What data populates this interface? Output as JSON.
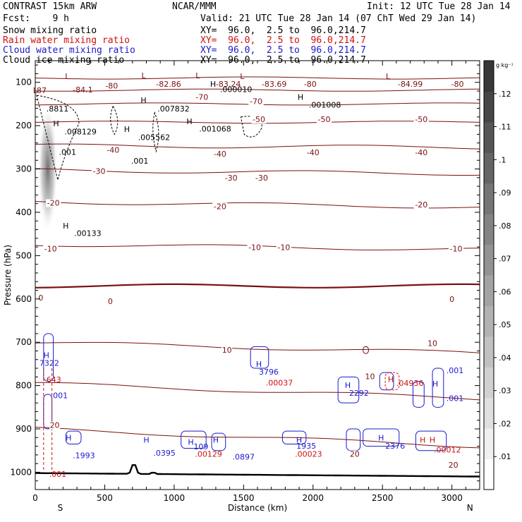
{
  "header": {
    "model": "CONTRAST 15km ARW",
    "org": "NCAR/MMM",
    "init": "Init: 12 UTC Tue 28 Jan 14",
    "fcst": "Fcst:    9 h",
    "valid": "Valid: 21 UTC Tue 28 Jan 14 (07 ChT Wed 29 Jan 14)",
    "fields": [
      {
        "label": "Snow mixing ratio",
        "xy": "XY=  96.0,  2.5 to  96.0,214.7",
        "color": "#000000"
      },
      {
        "label": "Rain water mixing ratio",
        "xy": "XY=  96.0,  2.5 to  96.0,214.7",
        "color": "#d01010"
      },
      {
        "label": "Cloud water mixing ratio",
        "xy": "XY=  96.0,  2.5 to  96.0,214.7",
        "color": "#1a1acc"
      },
      {
        "label": "Cloud ice mixing ratio",
        "xy": "XY=  96.0,  2.5 to  96.0,214.7",
        "color": "#000000"
      }
    ]
  },
  "colors": {
    "temperature": "#7a1010",
    "freezing_line": "#7a1010",
    "rain": "#d01010",
    "cloud_water": "#1a1acc",
    "snow": "#000000",
    "terrain": "#000000"
  },
  "chart_data": {
    "type": "contour-cross-section",
    "ylabel": "Pressure (hPa)",
    "xlabel": "Distance (km)",
    "x_ticks": [
      "0",
      "500",
      "1000",
      "1500",
      "2000",
      "2500",
      "3000"
    ],
    "x_tick_values": [
      0,
      500,
      1000,
      1500,
      2000,
      2500,
      3000
    ],
    "x_ends": {
      "left": "S",
      "right": "N"
    },
    "xlim": [
      0,
      3200
    ],
    "y_ticks": [
      "100",
      "200",
      "300",
      "400",
      "500",
      "600",
      "700",
      "800",
      "900",
      "1000"
    ],
    "y_tick_values": [
      100,
      200,
      300,
      400,
      500,
      600,
      700,
      800,
      900,
      1000
    ],
    "ylim": [
      1040,
      50
    ],
    "colorbar": {
      "unit": "g kg⁻¹",
      "ticks": [
        ".01",
        ".02",
        ".03",
        ".04",
        ".05",
        ".06",
        ".07",
        ".08",
        ".09",
        ".1",
        ".11",
        ".12"
      ],
      "tick_values": [
        0.01,
        0.02,
        0.03,
        0.04,
        0.05,
        0.06,
        0.07,
        0.08,
        0.09,
        0.1,
        0.11,
        0.12
      ]
    },
    "temperature_labels": [
      {
        "x": 550,
        "p": 108,
        "text": "-80"
      },
      {
        "x": 1980,
        "p": 104,
        "text": "-80"
      },
      {
        "x": 3040,
        "p": 104,
        "text": "-80"
      },
      {
        "x": 1200,
        "p": 134,
        "text": "-70"
      },
      {
        "x": 1590,
        "p": 144,
        "text": "-70"
      },
      {
        "x": 1610,
        "p": 185,
        "text": "-50"
      },
      {
        "x": 2080,
        "p": 185,
        "text": "-50"
      },
      {
        "x": 2780,
        "p": 185,
        "text": "-50"
      },
      {
        "x": 560,
        "p": 256,
        "text": "-40"
      },
      {
        "x": 1330,
        "p": 265,
        "text": "-40"
      },
      {
        "x": 2000,
        "p": 262,
        "text": "-40"
      },
      {
        "x": 2780,
        "p": 262,
        "text": "-40"
      },
      {
        "x": 460,
        "p": 305,
        "text": "-30"
      },
      {
        "x": 1410,
        "p": 320,
        "text": "-30"
      },
      {
        "x": 1630,
        "p": 320,
        "text": "-30"
      },
      {
        "x": 130,
        "p": 378,
        "text": "-20"
      },
      {
        "x": 1330,
        "p": 386,
        "text": "-20"
      },
      {
        "x": 2780,
        "p": 382,
        "text": "-20"
      },
      {
        "x": 110,
        "p": 484,
        "text": "-10"
      },
      {
        "x": 1580,
        "p": 481,
        "text": "-10"
      },
      {
        "x": 1790,
        "p": 481,
        "text": "-10"
      },
      {
        "x": 3030,
        "p": 484,
        "text": "-10"
      },
      {
        "x": 40,
        "p": 597,
        "text": "0"
      },
      {
        "x": 540,
        "p": 605,
        "text": "0"
      },
      {
        "x": 3000,
        "p": 600,
        "text": "0"
      },
      {
        "x": 2860,
        "p": 702,
        "text": "10"
      },
      {
        "x": 1380,
        "p": 718,
        "text": "10"
      },
      {
        "x": 2410,
        "p": 779,
        "text": "10"
      },
      {
        "x": 140,
        "p": 891,
        "text": "20"
      },
      {
        "x": 2300,
        "p": 958,
        "text": "20"
      },
      {
        "x": 3010,
        "p": 983,
        "text": "20"
      }
    ],
    "lows": [
      {
        "x": 230,
        "p": 86
      },
      {
        "x": 780,
        "p": 84
      },
      {
        "x": 1170,
        "p": 84
      },
      {
        "x": 1490,
        "p": 86
      },
      {
        "x": 2540,
        "p": 86
      },
      {
        "x": 0,
        "p": 118
      }
    ],
    "low_values": [
      {
        "x": 10,
        "p": 118,
        "text": "87"
      },
      {
        "x": 270,
        "p": 117,
        "text": "-84.1"
      },
      {
        "x": 870,
        "p": 104,
        "text": "-82.86"
      },
      {
        "x": 1300,
        "p": 104,
        "text": "-83.24"
      },
      {
        "x": 1630,
        "p": 104,
        "text": "-83.69"
      },
      {
        "x": 2610,
        "p": 104,
        "text": "-84.99"
      }
    ],
    "highs": [
      {
        "x": 1280,
        "p": 104,
        "text": "H"
      },
      {
        "x": 1910,
        "p": 134,
        "text": "H"
      },
      {
        "x": 780,
        "p": 141,
        "text": "H"
      },
      {
        "x": 1110,
        "p": 190,
        "text": "H"
      },
      {
        "x": 660,
        "p": 208,
        "text": "H"
      },
      {
        "x": 150,
        "p": 195,
        "text": "H"
      },
      {
        "x": 220,
        "p": 431,
        "text": "H"
      }
    ],
    "cloud_ice_values": [
      {
        "x": 1330,
        "p": 116,
        "text": ".000010"
      },
      {
        "x": 1970,
        "p": 152,
        "text": ".001008"
      },
      {
        "x": 880,
        "p": 161,
        "text": ".007832"
      },
      {
        "x": 80,
        "p": 161,
        "text": ".8811"
      },
      {
        "x": 210,
        "p": 214,
        "text": ".008129"
      },
      {
        "x": 1180,
        "p": 207,
        "text": ".001068"
      },
      {
        "x": 740,
        "p": 227,
        "text": ".005562"
      },
      {
        "x": 170,
        "p": 261,
        "text": ".001"
      },
      {
        "x": 690,
        "p": 281,
        "text": ".001"
      },
      {
        "x": 280,
        "p": 448,
        "text": ".00133"
      }
    ],
    "cloud_water_values": [
      {
        "x": 30,
        "p": 748,
        "text": "7322"
      },
      {
        "x": 1610,
        "p": 768,
        "text": "3796"
      },
      {
        "x": 2960,
        "p": 765,
        "text": ".001"
      },
      {
        "x": 2260,
        "p": 817,
        "text": "2292"
      },
      {
        "x": 110,
        "p": 823,
        "text": ".001"
      },
      {
        "x": 2960,
        "p": 829,
        "text": ".001"
      },
      {
        "x": 1880,
        "p": 939,
        "text": "1935"
      },
      {
        "x": 2520,
        "p": 939,
        "text": "2376"
      },
      {
        "x": 1140,
        "p": 941,
        "text": "109"
      },
      {
        "x": 270,
        "p": 961,
        "text": ".1993"
      },
      {
        "x": 850,
        "p": 955,
        "text": ".0395"
      },
      {
        "x": 1420,
        "p": 964,
        "text": ".0897"
      }
    ],
    "rain_values": [
      {
        "x": 80,
        "p": 786,
        "text": "643"
      },
      {
        "x": 1660,
        "p": 793,
        "text": ".00037"
      },
      {
        "x": 2600,
        "p": 794,
        "text": ".04936"
      },
      {
        "x": 1150,
        "p": 958,
        "text": ".00129"
      },
      {
        "x": 1870,
        "p": 958,
        "text": ".00023"
      },
      {
        "x": 2870,
        "p": 948,
        "text": ".00012"
      },
      {
        "x": 100,
        "p": 1004,
        "text": ".001"
      }
    ],
    "cloud_water_highs": [
      {
        "x": 80,
        "p": 730
      },
      {
        "x": 1610,
        "p": 750
      },
      {
        "x": 2250,
        "p": 799
      },
      {
        "x": 1900,
        "p": 925
      },
      {
        "x": 2490,
        "p": 920
      },
      {
        "x": 1120,
        "p": 930
      },
      {
        "x": 240,
        "p": 920
      },
      {
        "x": 800,
        "p": 925
      },
      {
        "x": 1300,
        "p": 925
      },
      {
        "x": 2880,
        "p": 796
      }
    ],
    "rain_highs": [
      {
        "x": 2560,
        "p": 785
      },
      {
        "x": 2790,
        "p": 925
      },
      {
        "x": 2860,
        "p": 925
      }
    ]
  }
}
